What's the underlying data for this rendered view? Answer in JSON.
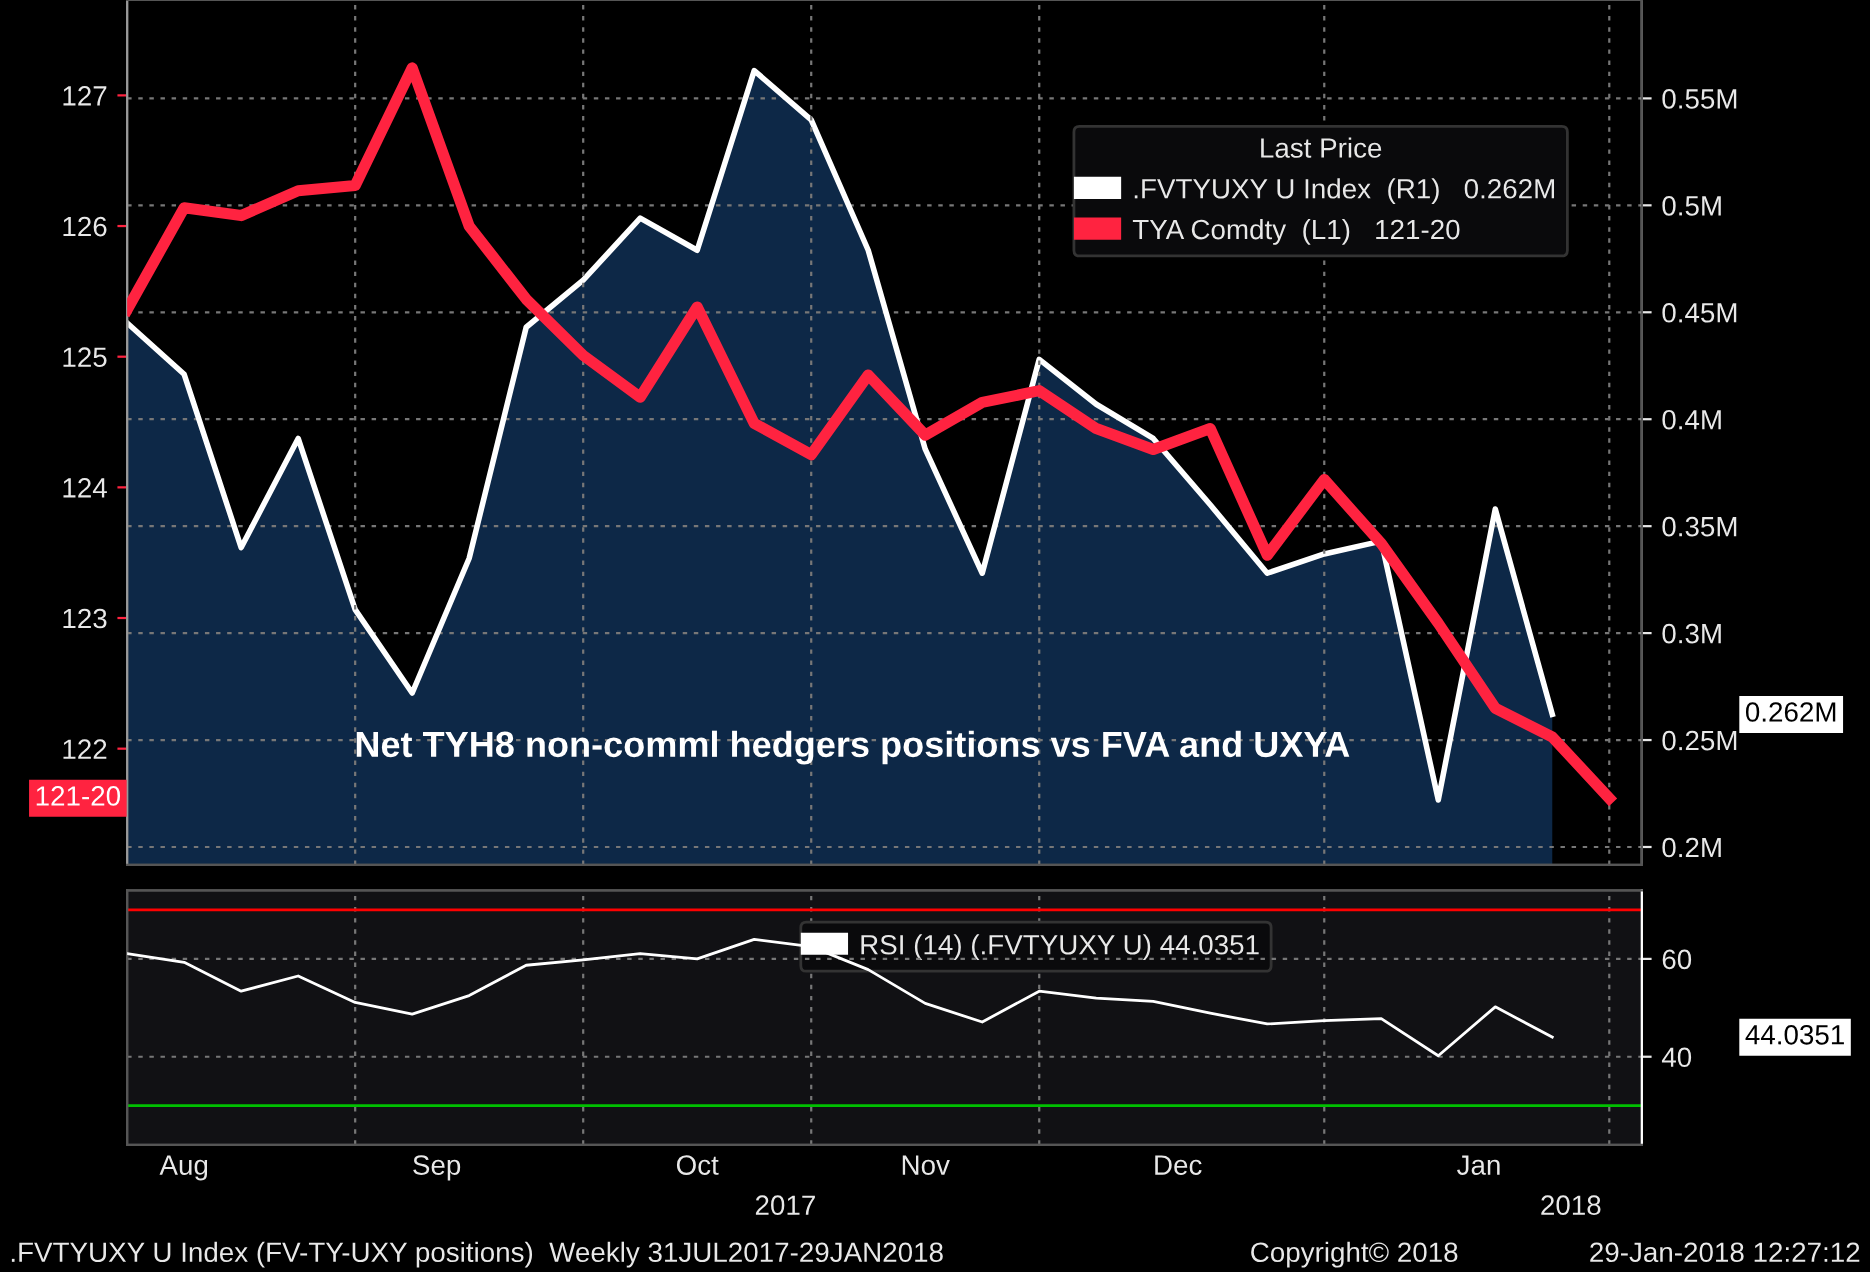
{
  "chart_data": [
    {
      "type": "line",
      "annotations": [
        "Net TYH8 non-comml hedgers positions vs FVA and UXYA",
        "0.262M",
        "121-20"
      ],
      "x": [
        "2017-07-31",
        "2017-08-07",
        "2017-08-14",
        "2017-08-21",
        "2017-08-28",
        "2017-09-04",
        "2017-09-11",
        "2017-09-18",
        "2017-09-25",
        "2017-10-02",
        "2017-10-09",
        "2017-10-16",
        "2017-10-23",
        "2017-10-30",
        "2017-11-06",
        "2017-11-13",
        "2017-11-20",
        "2017-11-27",
        "2017-12-04",
        "2017-12-11",
        "2017-12-18",
        "2017-12-25",
        "2018-01-01",
        "2018-01-08",
        "2018-01-15",
        "2018-01-22",
        "2018-01-29"
      ],
      "series": [
        {
          "name": ".FVTYUXY U Index  (R1)   0.262M",
          "type": "area",
          "axis": "y2",
          "color": "#ffffff",
          "values": [
            0.445,
            0.421,
            0.34,
            0.391,
            0.311,
            0.272,
            0.335,
            0.443,
            0.465,
            0.494,
            0.479,
            0.563,
            0.54,
            0.479,
            0.386,
            0.328,
            0.428,
            0.407,
            0.391,
            0.36,
            0.328,
            0.337,
            0.343,
            0.222,
            0.358,
            0.262,
            null
          ]
        },
        {
          "name": "TYA Comdty  (L1)   121-20",
          "type": "line",
          "color": "#ff2340",
          "values": [
            125.36,
            126.14,
            126.08,
            126.27,
            126.31,
            127.21,
            126.0,
            125.44,
            125.01,
            124.69,
            125.38,
            124.49,
            124.25,
            124.86,
            124.4,
            124.65,
            124.74,
            124.45,
            124.29,
            124.45,
            123.48,
            124.06,
            123.57,
            122.96,
            122.31,
            122.09,
            121.62
          ]
        }
      ],
      "legend_title": "Last Price",
      "legend": "top right",
      "grid": true,
      "tick_labels": "y",
      "xlim": [
        "2017-07-31",
        "2018-02-02"
      ],
      "xticks": [
        {
          "value": "2017-08-28",
          "label": null
        },
        {
          "value": "2017-09-25",
          "label": null
        },
        {
          "value": "2017-10-23",
          "label": null
        },
        {
          "value": "2017-11-20",
          "label": null
        },
        {
          "value": "2017-12-25",
          "label": null
        },
        {
          "value": "2018-01-29",
          "label": null
        }
      ],
      "ylim": [
        121.11,
        127.73
      ],
      "yticks": [
        122,
        123,
        124,
        125,
        126,
        127
      ],
      "y2lim": [
        0.1916,
        0.596
      ],
      "y2ticks": [
        {
          "value": 0.2,
          "label": "0.2M"
        },
        {
          "value": 0.25,
          "label": "0.25M"
        },
        {
          "value": 0.3,
          "label": "0.3M"
        },
        {
          "value": 0.35,
          "label": "0.35M"
        },
        {
          "value": 0.4,
          "label": "0.4M"
        },
        {
          "value": 0.45,
          "label": "0.45M"
        },
        {
          "value": 0.5,
          "label": "0.5M"
        },
        {
          "value": 0.55,
          "label": "0.55M"
        }
      ]
    },
    {
      "type": "line",
      "annotations": [
        "2017",
        "2018",
        ".FVTYUXY U Index (FV-TY-UXY positions)  Weekly 31JUL2017-29JAN2018",
        "Copyright© 2018",
        "29-Jan-2018 12:27:12",
        "44.0351"
      ],
      "x": [
        "2017-07-31",
        "2017-08-07",
        "2017-08-14",
        "2017-08-21",
        "2017-08-28",
        "2017-09-04",
        "2017-09-11",
        "2017-09-18",
        "2017-09-25",
        "2017-10-02",
        "2017-10-09",
        "2017-10-16",
        "2017-10-23",
        "2017-10-30",
        "2017-11-06",
        "2017-11-13",
        "2017-11-20",
        "2017-11-27",
        "2017-12-04",
        "2017-12-11",
        "2017-12-18",
        "2017-12-25",
        "2018-01-01",
        "2018-01-08",
        "2018-01-15",
        "2018-01-22"
      ],
      "series": [
        {
          "name": "RSI (14) (.FVTYUXY U) 44.0351",
          "axis": "y2",
          "color": "#ffffff",
          "values": [
            61.1,
            59.3,
            53.4,
            56.5,
            51.1,
            48.7,
            52.5,
            58.7,
            59.8,
            61.1,
            60.0,
            64.0,
            62.5,
            57.8,
            50.9,
            47.1,
            53.4,
            52.0,
            51.3,
            48.9,
            46.7,
            47.4,
            47.8,
            40.2,
            50.2,
            44.0
          ]
        }
      ],
      "ref_lines": [
        {
          "axis": "y2",
          "value": 70,
          "color": "#ff0000"
        },
        {
          "axis": "y2",
          "value": 30,
          "color": "#00c000"
        }
      ],
      "legend": "top",
      "grid": true,
      "xlim": [
        "2017-07-31",
        "2018-02-02"
      ],
      "xticks": [
        {
          "value": "2017-08-07",
          "label": "Aug"
        },
        {
          "value": "2017-08-28",
          "label": null
        },
        {
          "value": "2017-09-07",
          "label": "Sep"
        },
        {
          "value": "2017-09-25",
          "label": null
        },
        {
          "value": "2017-10-09",
          "label": "Oct"
        },
        {
          "value": "2017-10-23",
          "label": null
        },
        {
          "value": "2017-11-06",
          "label": "Nov"
        },
        {
          "value": "2017-11-20",
          "label": null
        },
        {
          "value": "2017-12-07",
          "label": "Dec"
        },
        {
          "value": "2017-12-25",
          "label": null
        },
        {
          "value": "2018-01-13",
          "label": "Jan"
        },
        {
          "value": "2018-01-29",
          "label": null
        }
      ],
      "y2lim": [
        22,
        74
      ],
      "y2ticks": [
        40,
        60
      ]
    }
  ]
}
